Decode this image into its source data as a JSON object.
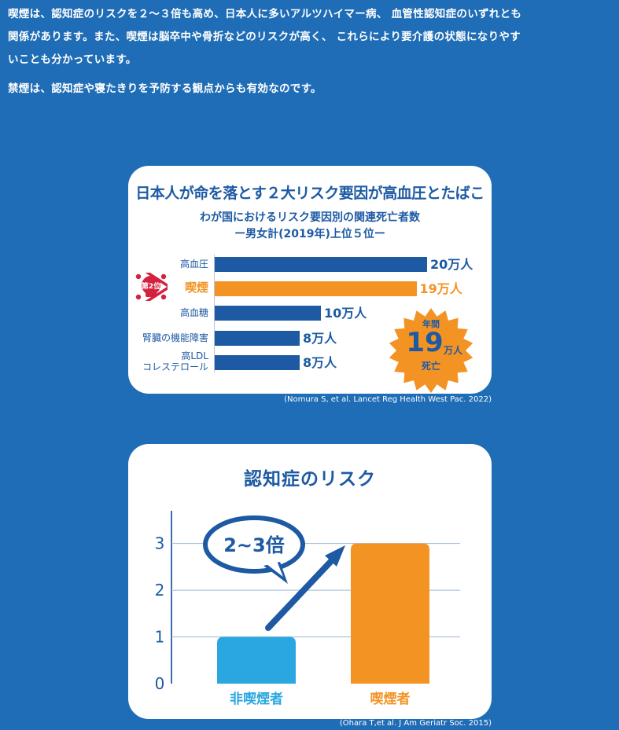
{
  "intro": {
    "line1": "喫煙は、認知症のリスクを２～３倍も高め、日本人に多いアルツハイマー病、 血管性認知症のいずれとも",
    "line2": "関係があります。また、喫煙は脳卒中や骨折などのリスクが高く、 これらにより要介護の状態になりやす",
    "line3": "いことも分かっています。",
    "line4": "禁煙は、認知症や寝たきりを予防する観点からも有効なのです。"
  },
  "colors": {
    "background": "#1f6db6",
    "navy": "#1d5aa3",
    "orange": "#f39324",
    "light_blue": "#2aa6e0",
    "skull_red": "#d4213d"
  },
  "chart_data": [
    {
      "type": "bar",
      "orientation": "horizontal",
      "title": "日本人が命を落とす２大リスク要因が高血圧とたばこ",
      "subtitle": [
        "わが国におけるリスク要因別の関連死亡者数",
        "ー男女計(2019年)上位５位ー"
      ],
      "categories": [
        "高血圧",
        "喫煙",
        "高血糖",
        "腎臓の機能障害",
        "高LDL コレステロール"
      ],
      "category_lines": [
        [
          "高血圧"
        ],
        [
          "喫煙"
        ],
        [
          "高血糖"
        ],
        [
          "腎臓の機能障害"
        ],
        [
          "高LDL",
          "コレステロール"
        ]
      ],
      "values": [
        20,
        19,
        10,
        8,
        8
      ],
      "value_labels": [
        "20万人",
        "19万人",
        "10万人",
        "8万人",
        "8万人"
      ],
      "unit": "万人",
      "highlight_index": 1,
      "badge": "第2位",
      "callout": {
        "top": "年間",
        "number": "19",
        "unit": "万人",
        "bottom": "死亡"
      },
      "source": "(Nomura S, et al. Lancet Reg Health West Pac. 2022)"
    },
    {
      "type": "bar",
      "title": "認知症のリスク",
      "categories": [
        "非喫煙者",
        "喫煙者"
      ],
      "values": [
        1,
        3
      ],
      "yticks": [
        0,
        1,
        2,
        3
      ],
      "ylim": [
        0,
        3.7
      ],
      "grid": true,
      "callout": "2~3倍",
      "source": "(Ohara T,et al. J Am Geriatr Soc. 2015)"
    }
  ]
}
